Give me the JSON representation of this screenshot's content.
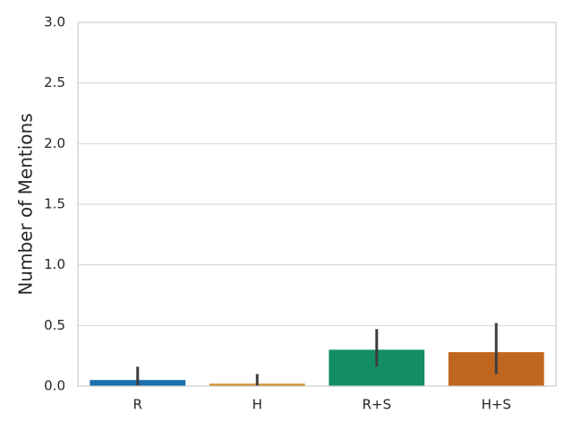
{
  "chart_data": {
    "type": "bar",
    "ylabel": "Number of Mentions",
    "categories": [
      "R",
      "H",
      "R+S",
      "H+S"
    ],
    "values": [
      0.05,
      0.02,
      0.3,
      0.28
    ],
    "ci_low": [
      0.0,
      0.0,
      0.16,
      0.1
    ],
    "ci_high": [
      0.16,
      0.1,
      0.47,
      0.52
    ],
    "colors": [
      "#1a6fad",
      "#cf8f2f",
      "#138d66",
      "#bf651d"
    ],
    "error_color": "#3d3d3d",
    "ylim": [
      0,
      3
    ],
    "yticks": [
      {
        "value": 0,
        "label": "0.0"
      },
      0.5,
      {
        "value": 1,
        "label": "1.0"
      },
      1.5,
      {
        "value": 2,
        "label": "2.0"
      },
      2.5,
      {
        "value": 3,
        "label": "3.0"
      }
    ],
    "grid": true
  }
}
